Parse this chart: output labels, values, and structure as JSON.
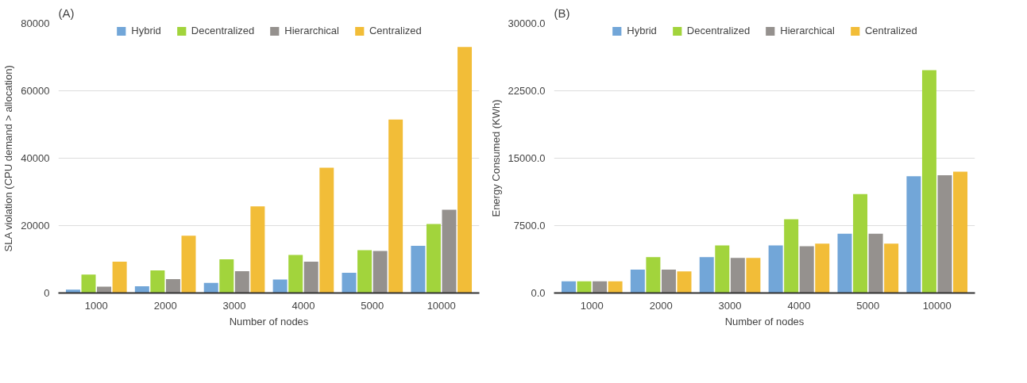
{
  "chart_data": [
    {
      "type": "bar",
      "title": "(A)",
      "xlabel": "Number of nodes",
      "ylabel": "SLA violation (CPU demand > allocation)",
      "categories": [
        "1000",
        "2000",
        "3000",
        "4000",
        "5000",
        "10000"
      ],
      "ylim": [
        0,
        80000
      ],
      "yticks": [
        0,
        20000,
        40000,
        60000,
        80000
      ],
      "grid": "y",
      "legend": "top",
      "series": [
        {
          "name": "Hybrid",
          "color": "#72a6d8",
          "values": [
            1000,
            2000,
            3000,
            4000,
            6000,
            14000
          ]
        },
        {
          "name": "Decentralized",
          "color": "#a2d43c",
          "values": [
            5500,
            6700,
            10000,
            11300,
            12700,
            20500
          ]
        },
        {
          "name": "Hierarchical",
          "color": "#95918e",
          "values": [
            1900,
            4100,
            6500,
            9300,
            12500,
            24700
          ]
        },
        {
          "name": "Centralized",
          "color": "#f2bd38",
          "values": [
            9300,
            17000,
            25700,
            37200,
            51500,
            73000
          ]
        }
      ]
    },
    {
      "type": "bar",
      "title": "(B)",
      "xlabel": "Number of nodes",
      "ylabel": "Energy Consumed (KWh)",
      "categories": [
        "1000",
        "2000",
        "3000",
        "4000",
        "5000",
        "10000"
      ],
      "ylim": [
        0,
        30000
      ],
      "yticks": [
        {
          "value": 0,
          "label": "0.0"
        },
        {
          "value": 7500,
          "label": "7500.0"
        },
        {
          "value": 15000,
          "label": "15000.0"
        },
        {
          "value": 22500,
          "label": "22500.0"
        },
        {
          "value": 30000,
          "label": "30000.0"
        }
      ],
      "grid": "y",
      "legend": "top",
      "series": [
        {
          "name": "Hybrid",
          "color": "#72a6d8",
          "values": [
            1300,
            2600,
            4000,
            5300,
            6600,
            13000
          ]
        },
        {
          "name": "Decentralized",
          "color": "#a2d43c",
          "values": [
            1300,
            4000,
            5300,
            8200,
            11000,
            24800
          ]
        },
        {
          "name": "Hierarchical",
          "color": "#95918e",
          "values": [
            1300,
            2600,
            3900,
            5200,
            6600,
            13100
          ]
        },
        {
          "name": "Centralized",
          "color": "#f2bd38",
          "values": [
            1300,
            2400,
            3900,
            5500,
            5500,
            13500
          ]
        }
      ]
    }
  ]
}
